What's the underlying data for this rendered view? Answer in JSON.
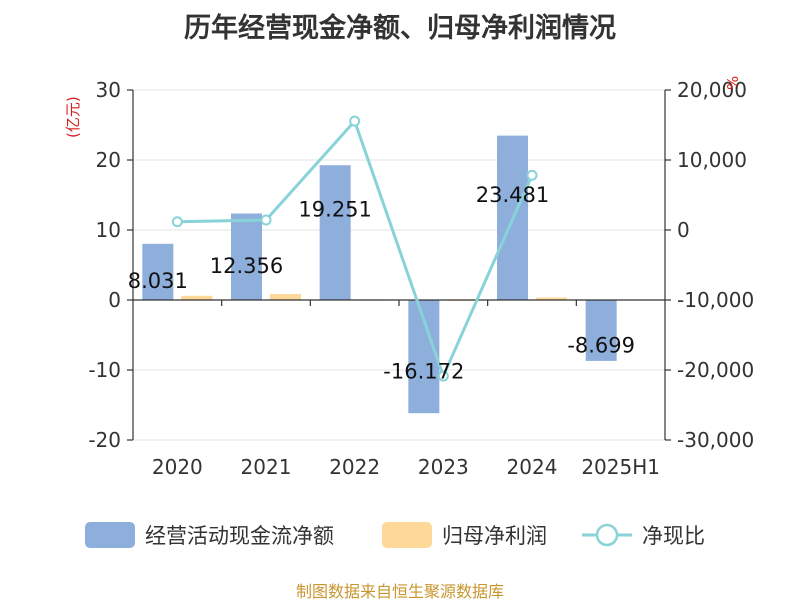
{
  "title": "历年经营现金净额、归母净利润情况",
  "source": "制图数据来自恒生聚源数据库",
  "colors": {
    "cash": "#8eaedc",
    "profit": "#fdd898",
    "ratio": "#88d3d8",
    "unit": "#d62020",
    "source": "#c8962e"
  },
  "chart_data": {
    "type": "bar",
    "categories": [
      "2020",
      "2021",
      "2022",
      "2023",
      "2024",
      "2025H1"
    ],
    "series": [
      {
        "name": "经营活动现金流净额",
        "type": "bar",
        "axis": "left",
        "values": [
          8.031,
          12.356,
          19.251,
          -16.172,
          23.481,
          -8.699
        ],
        "labels": [
          "8.031",
          "12.356",
          "19.251",
          "-16.172",
          "23.481",
          "-8.699"
        ]
      },
      {
        "name": "归母净利润",
        "type": "bar",
        "axis": "left",
        "values": [
          0.6,
          0.85,
          0.1,
          0.0,
          0.35,
          null
        ]
      },
      {
        "name": "净现比",
        "type": "line",
        "axis": "right",
        "values": [
          1180,
          1430,
          15550,
          -20870,
          7820,
          null
        ]
      }
    ],
    "left_axis": {
      "unit": "(亿元)",
      "ylim": [
        -20,
        30
      ],
      "ticks": [
        30,
        20,
        10,
        0,
        -10,
        -20
      ],
      "tick_labels": [
        "30",
        "20",
        "10",
        "0",
        "-10",
        "-20"
      ]
    },
    "right_axis": {
      "unit": "%",
      "ylim": [
        -30000,
        20000
      ],
      "ticks": [
        20000,
        10000,
        0,
        -10000,
        -20000,
        -30000
      ],
      "tick_labels": [
        "20,000",
        "10,000",
        "0",
        "-10,000",
        "-20,000",
        "-30,000"
      ]
    },
    "grid": true,
    "legend": "bottom"
  }
}
